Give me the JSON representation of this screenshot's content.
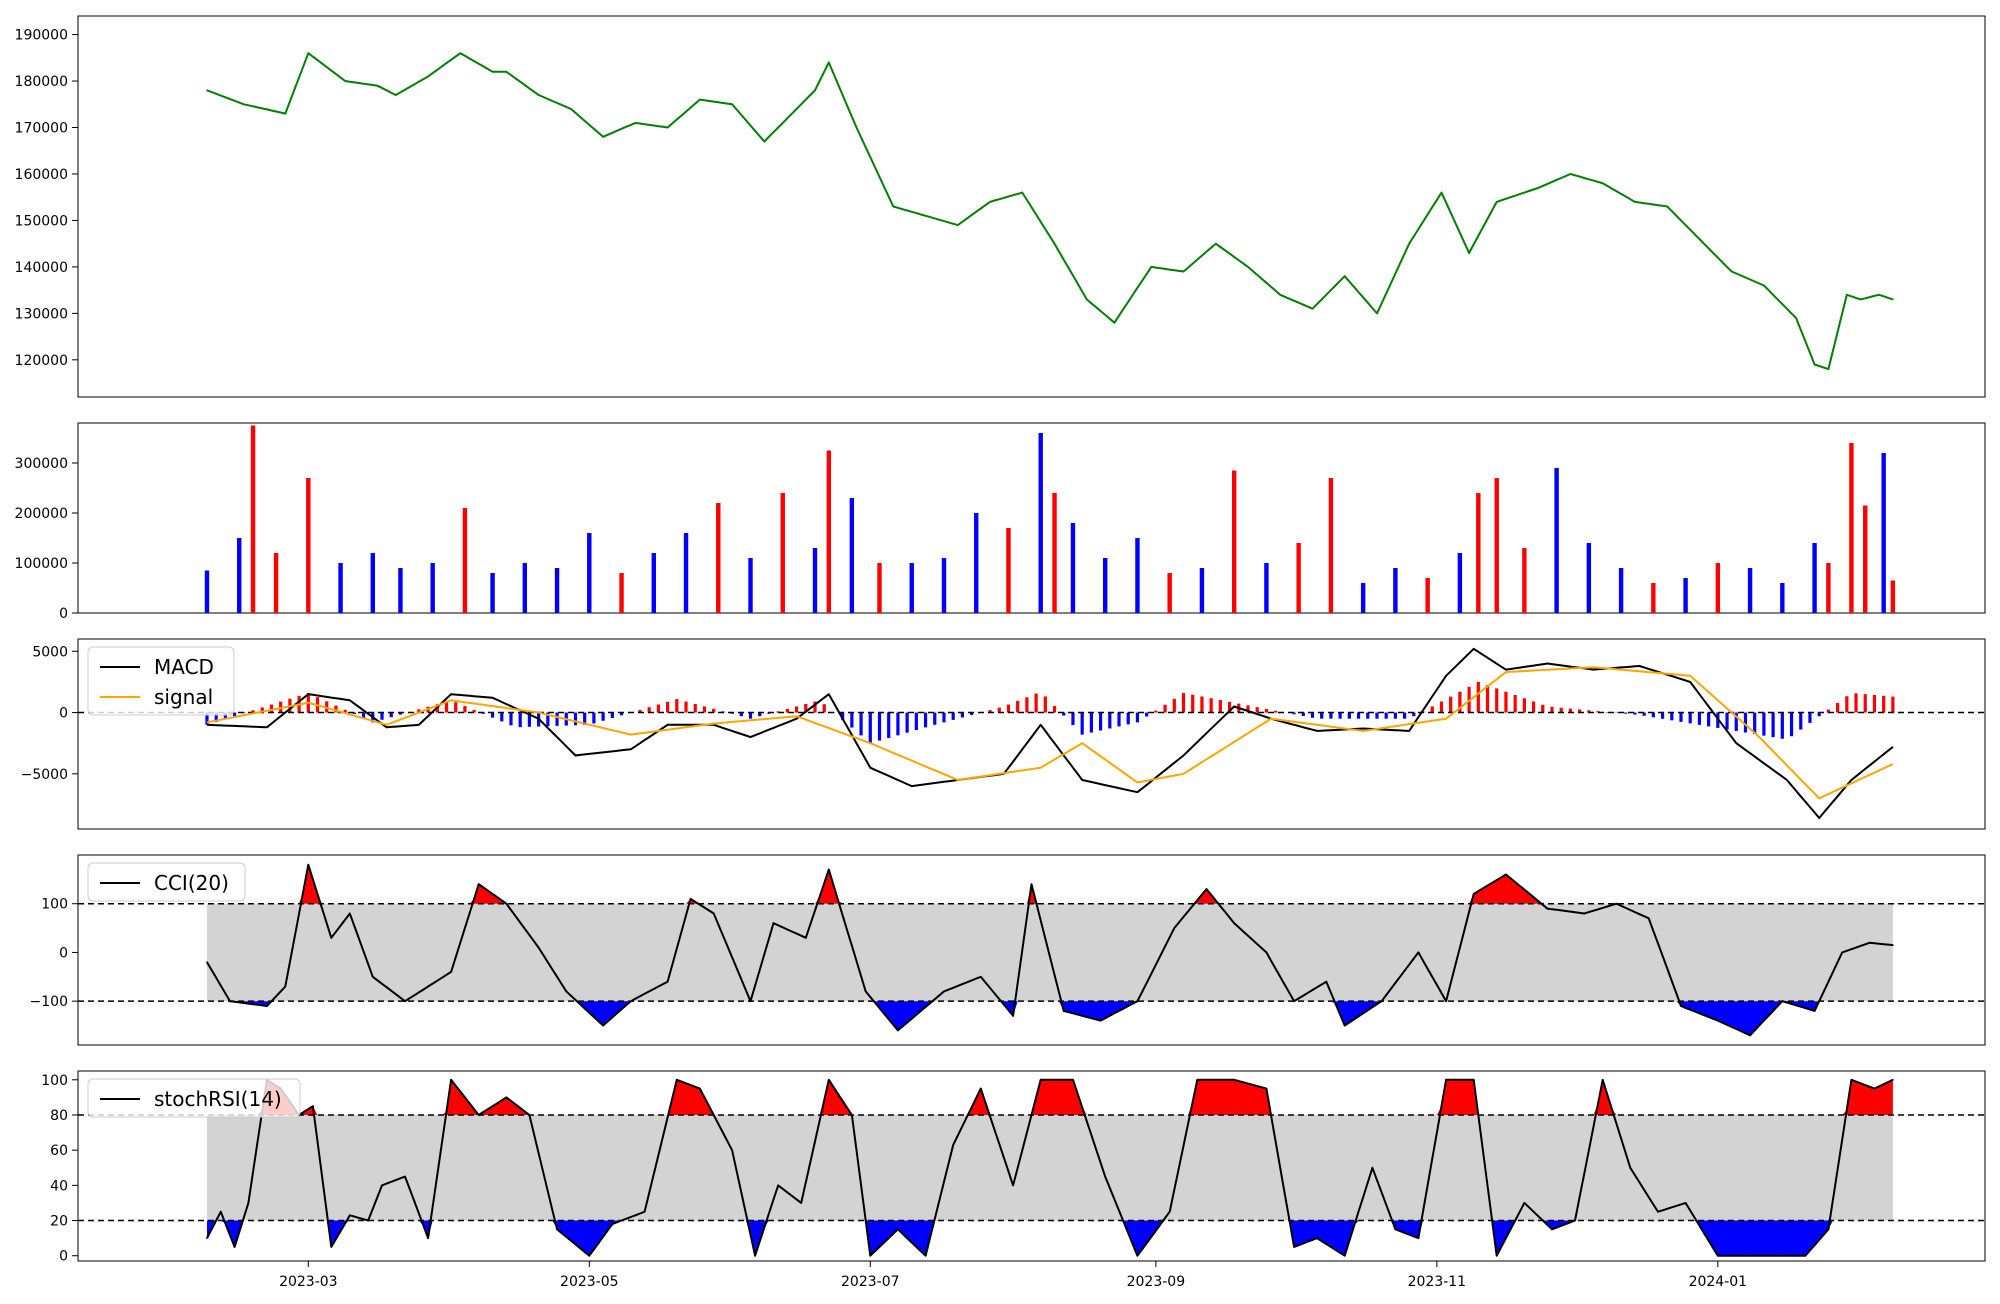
{
  "colors": {
    "price": "#008000",
    "up": "#ff0000",
    "down": "#0000ff",
    "neutral": "#000000",
    "macd": "#000000",
    "signal": "#ffa500",
    "band": "#d3d3d3",
    "overbought": "#ff0000",
    "oversold": "#0000ff"
  },
  "chart_data": [
    {
      "type": "line",
      "panel": "price",
      "ylim": [
        112000,
        194000
      ],
      "yticks": [
        120000,
        130000,
        140000,
        150000,
        160000,
        170000,
        180000,
        190000
      ],
      "x_dates": [
        "2023-02-07",
        "2023-02-15",
        "2023-02-24",
        "2023-03-01",
        "2023-03-09",
        "2023-03-16",
        "2023-03-20",
        "2023-03-27",
        "2023-04-03",
        "2023-04-10",
        "2023-04-13",
        "2023-04-20",
        "2023-04-27",
        "2023-05-04",
        "2023-05-11",
        "2023-05-18",
        "2023-05-25",
        "2023-06-01",
        "2023-06-08",
        "2023-06-14",
        "2023-06-19",
        "2023-06-22",
        "2023-06-28",
        "2023-07-06",
        "2023-07-13",
        "2023-07-20",
        "2023-07-27",
        "2023-08-03",
        "2023-08-10",
        "2023-08-17",
        "2023-08-23",
        "2023-08-31",
        "2023-09-07",
        "2023-09-14",
        "2023-09-21",
        "2023-09-28",
        "2023-10-05",
        "2023-10-12",
        "2023-10-19",
        "2023-10-26",
        "2023-11-02",
        "2023-11-08",
        "2023-11-14",
        "2023-11-17",
        "2023-11-23",
        "2023-11-30",
        "2023-12-07",
        "2023-12-14",
        "2023-12-21",
        "2023-12-28",
        "2024-01-04",
        "2024-01-11",
        "2024-01-18",
        "2024-01-22",
        "2024-01-25",
        "2024-01-29",
        "2024-02-01",
        "2024-02-05",
        "2024-02-08"
      ],
      "values": [
        178000,
        175000,
        173000,
        186000,
        180000,
        179000,
        177000,
        181000,
        186000,
        182000,
        182000,
        177000,
        174000,
        168000,
        171000,
        170000,
        176000,
        175000,
        167000,
        173000,
        178000,
        184000,
        170000,
        153000,
        151000,
        149000,
        154000,
        156000,
        145000,
        133000,
        128000,
        140000,
        139000,
        145000,
        140000,
        134000,
        131000,
        138000,
        130000,
        145000,
        156000,
        143000,
        154000,
        155000,
        157000,
        160000,
        158000,
        154000,
        153000,
        146000,
        139000,
        136000,
        129000,
        119000,
        118000,
        134000,
        133000,
        134000,
        133000
      ]
    },
    {
      "type": "bar",
      "panel": "volume",
      "ylim": [
        0,
        380000
      ],
      "yticks": [
        0,
        100000,
        200000,
        300000
      ],
      "x_dates": [
        "2023-02-07",
        "2023-02-14",
        "2023-02-17",
        "2023-02-22",
        "2023-03-01",
        "2023-03-08",
        "2023-03-15",
        "2023-03-21",
        "2023-03-28",
        "2023-04-04",
        "2023-04-10",
        "2023-04-17",
        "2023-04-24",
        "2023-05-01",
        "2023-05-08",
        "2023-05-15",
        "2023-05-22",
        "2023-05-29",
        "2023-06-05",
        "2023-06-12",
        "2023-06-19",
        "2023-06-22",
        "2023-06-27",
        "2023-07-03",
        "2023-07-10",
        "2023-07-17",
        "2023-07-24",
        "2023-07-31",
        "2023-08-07",
        "2023-08-10",
        "2023-08-14",
        "2023-08-21",
        "2023-08-28",
        "2023-09-04",
        "2023-09-11",
        "2023-09-18",
        "2023-09-25",
        "2023-10-02",
        "2023-10-09",
        "2023-10-16",
        "2023-10-23",
        "2023-10-30",
        "2023-11-06",
        "2023-11-10",
        "2023-11-14",
        "2023-11-20",
        "2023-11-27",
        "2023-12-04",
        "2023-12-11",
        "2023-12-18",
        "2023-12-25",
        "2024-01-01",
        "2024-01-08",
        "2024-01-15",
        "2024-01-22",
        "2024-01-25",
        "2024-01-30",
        "2024-02-02",
        "2024-02-06",
        "2024-02-08"
      ],
      "values": [
        85000,
        150000,
        375000,
        120000,
        270000,
        100000,
        120000,
        90000,
        100000,
        210000,
        80000,
        100000,
        90000,
        160000,
        80000,
        120000,
        160000,
        220000,
        110000,
        240000,
        130000,
        325000,
        230000,
        100000,
        100000,
        110000,
        200000,
        170000,
        360000,
        240000,
        180000,
        110000,
        150000,
        80000,
        90000,
        285000,
        100000,
        140000,
        270000,
        60000,
        90000,
        70000,
        120000,
        240000,
        270000,
        130000,
        290000,
        140000,
        90000,
        60000,
        70000,
        100000,
        90000,
        60000,
        140000,
        100000,
        340000,
        215000,
        320000,
        65000
      ],
      "direction": [
        "down",
        "down",
        "up",
        "up",
        "up",
        "down",
        "down",
        "down",
        "down",
        "up",
        "down",
        "down",
        "down",
        "down",
        "up",
        "down",
        "down",
        "up",
        "down",
        "up",
        "down",
        "up",
        "down",
        "up",
        "down",
        "down",
        "down",
        "up",
        "down",
        "up",
        "down",
        "down",
        "down",
        "up",
        "down",
        "up",
        "down",
        "up",
        "up",
        "down",
        "down",
        "up",
        "down",
        "up",
        "up",
        "up",
        "down",
        "down",
        "down",
        "up",
        "down",
        "up",
        "down",
        "down",
        "down",
        "up",
        "up",
        "up",
        "down",
        "up"
      ]
    },
    {
      "type": "line",
      "panel": "macd",
      "ylim": [
        -9500,
        6000
      ],
      "yticks": [
        -5000,
        0,
        5000
      ],
      "series": [
        {
          "name": "MACD",
          "x_dates": [
            "2023-02-07",
            "2023-02-20",
            "2023-03-01",
            "2023-03-10",
            "2023-03-18",
            "2023-03-25",
            "2023-04-01",
            "2023-04-10",
            "2023-04-20",
            "2023-04-28",
            "2023-05-10",
            "2023-05-18",
            "2023-05-28",
            "2023-06-05",
            "2023-06-15",
            "2023-06-22",
            "2023-07-01",
            "2023-07-10",
            "2023-07-20",
            "2023-07-30",
            "2023-08-07",
            "2023-08-16",
            "2023-08-28",
            "2023-09-07",
            "2023-09-18",
            "2023-09-26",
            "2023-10-06",
            "2023-10-16",
            "2023-10-26",
            "2023-11-03",
            "2023-11-09",
            "2023-11-16",
            "2023-11-25",
            "2023-12-05",
            "2023-12-15",
            "2023-12-26",
            "2024-01-05",
            "2024-01-16",
            "2024-01-23",
            "2024-01-30",
            "2024-02-08"
          ],
          "values": [
            -1000,
            -1200,
            1500,
            1000,
            -1200,
            -1000,
            1500,
            1200,
            -500,
            -3500,
            -3000,
            -1000,
            -1000,
            -2000,
            -500,
            1500,
            -4500,
            -6000,
            -5500,
            -5000,
            -1000,
            -5500,
            -6500,
            -3500,
            500,
            -500,
            -1500,
            -1300,
            -1500,
            3000,
            5200,
            3500,
            4000,
            3500,
            3800,
            2500,
            -2500,
            -5500,
            -8600,
            -5500,
            -2800
          ]
        },
        {
          "name": "signal",
          "x_dates": [
            "2023-02-07",
            "2023-03-01",
            "2023-03-18",
            "2023-04-01",
            "2023-04-20",
            "2023-05-10",
            "2023-05-28",
            "2023-06-15",
            "2023-07-01",
            "2023-07-20",
            "2023-08-07",
            "2023-08-16",
            "2023-08-28",
            "2023-09-07",
            "2023-09-26",
            "2023-10-16",
            "2023-11-03",
            "2023-11-16",
            "2023-12-05",
            "2023-12-26",
            "2024-01-10",
            "2024-01-23",
            "2024-02-08"
          ],
          "values": [
            -800,
            800,
            -1000,
            1000,
            0,
            -1800,
            -900,
            -300,
            -2500,
            -5500,
            -4500,
            -2500,
            -5700,
            -5000,
            -500,
            -1500,
            -500,
            3300,
            3700,
            3000,
            -2000,
            -7000,
            -4200
          ]
        }
      ],
      "histogram": {
        "x_dates": [
          "2023-02-07",
          "2023-03-01",
          "2023-03-15",
          "2023-04-01",
          "2023-04-15",
          "2023-05-01",
          "2023-05-20",
          "2023-06-05",
          "2023-06-20",
          "2023-07-01",
          "2023-07-15",
          "2023-07-30",
          "2023-08-07",
          "2023-08-16",
          "2023-08-28",
          "2023-09-07",
          "2023-09-18",
          "2023-10-06",
          "2023-10-26",
          "2023-11-10",
          "2023-11-25",
          "2023-12-15",
          "2024-01-05",
          "2024-01-16",
          "2024-01-30",
          "2024-02-08"
        ],
        "values": [
          -1000,
          1600,
          -800,
          1000,
          -1200,
          -1000,
          1100,
          -500,
          1000,
          -2500,
          -1000,
          500,
          1700,
          -1800,
          -800,
          1600,
          800,
          -500,
          -500,
          2500,
          500,
          -200,
          -1500,
          -2200,
          1600,
          1300
        ]
      },
      "legend": [
        "MACD",
        "signal"
      ],
      "legend_position": "upper-left"
    },
    {
      "type": "line",
      "panel": "cci",
      "ylim": [
        -190,
        200
      ],
      "yticks": [
        -100,
        0,
        100
      ],
      "thresholds": [
        100,
        -100
      ],
      "series": [
        {
          "name": "CCI(20)",
          "x_dates": [
            "2023-02-07",
            "2023-02-12",
            "2023-02-20",
            "2023-02-24",
            "2023-03-01",
            "2023-03-06",
            "2023-03-10",
            "2023-03-15",
            "2023-03-22",
            "2023-04-01",
            "2023-04-07",
            "2023-04-13",
            "2023-04-20",
            "2023-04-26",
            "2023-05-04",
            "2023-05-10",
            "2023-05-18",
            "2023-05-23",
            "2023-05-28",
            "2023-06-05",
            "2023-06-10",
            "2023-06-17",
            "2023-06-22",
            "2023-06-30",
            "2023-07-07",
            "2023-07-17",
            "2023-07-25",
            "2023-08-01",
            "2023-08-05",
            "2023-08-12",
            "2023-08-20",
            "2023-08-28",
            "2023-09-05",
            "2023-09-12",
            "2023-09-18",
            "2023-09-25",
            "2023-10-01",
            "2023-10-08",
            "2023-10-12",
            "2023-10-20",
            "2023-10-28",
            "2023-11-03",
            "2023-11-09",
            "2023-11-16",
            "2023-11-25",
            "2023-12-03",
            "2023-12-10",
            "2023-12-17",
            "2023-12-24",
            "2024-01-01",
            "2024-01-08",
            "2024-01-15",
            "2024-01-22",
            "2024-01-28",
            "2024-02-03",
            "2024-02-08"
          ],
          "values": [
            -20,
            -100,
            -110,
            -70,
            180,
            30,
            80,
            -50,
            -100,
            -40,
            140,
            100,
            10,
            -80,
            -150,
            -100,
            -60,
            110,
            80,
            -100,
            60,
            30,
            170,
            -80,
            -160,
            -80,
            -50,
            -130,
            140,
            -120,
            -140,
            -100,
            50,
            130,
            60,
            0,
            -100,
            -60,
            -150,
            -100,
            0,
            -100,
            120,
            160,
            90,
            80,
            100,
            70,
            -110,
            -140,
            -170,
            -100,
            -120,
            0,
            20,
            15
          ]
        }
      ],
      "legend": [
        "CCI(20)"
      ],
      "legend_position": "upper-left"
    },
    {
      "type": "line",
      "panel": "stochrsi",
      "ylim": [
        -3,
        105
      ],
      "yticks": [
        0,
        20,
        40,
        60,
        80,
        100
      ],
      "thresholds": [
        80,
        20
      ],
      "xticks": [
        "2023-03",
        "2023-05",
        "2023-07",
        "2023-09",
        "2023-11",
        "2024-01"
      ],
      "series": [
        {
          "name": "stochRSI(14)",
          "x_dates": [
            "2023-02-07",
            "2023-02-10",
            "2023-02-13",
            "2023-02-16",
            "2023-02-20",
            "2023-02-23",
            "2023-02-27",
            "2023-03-02",
            "2023-03-06",
            "2023-03-10",
            "2023-03-14",
            "2023-03-17",
            "2023-03-22",
            "2023-03-27",
            "2023-04-01",
            "2023-04-07",
            "2023-04-13",
            "2023-04-18",
            "2023-04-24",
            "2023-05-01",
            "2023-05-06",
            "2023-05-13",
            "2023-05-20",
            "2023-05-25",
            "2023-06-01",
            "2023-06-06",
            "2023-06-11",
            "2023-06-16",
            "2023-06-22",
            "2023-06-27",
            "2023-07-01",
            "2023-07-07",
            "2023-07-13",
            "2023-07-19",
            "2023-07-25",
            "2023-08-01",
            "2023-08-07",
            "2023-08-14",
            "2023-08-21",
            "2023-08-28",
            "2023-09-04",
            "2023-09-10",
            "2023-09-18",
            "2023-09-25",
            "2023-10-01",
            "2023-10-06",
            "2023-10-12",
            "2023-10-18",
            "2023-10-23",
            "2023-10-28",
            "2023-11-03",
            "2023-11-09",
            "2023-11-14",
            "2023-11-20",
            "2023-11-26",
            "2023-12-01",
            "2023-12-07",
            "2023-12-13",
            "2023-12-19",
            "2023-12-25",
            "2024-01-01",
            "2024-01-07",
            "2024-01-14",
            "2024-01-20",
            "2024-01-25",
            "2024-01-30",
            "2024-02-04",
            "2024-02-08"
          ],
          "values": [
            10,
            25,
            5,
            30,
            100,
            95,
            80,
            85,
            5,
            23,
            20,
            40,
            45,
            10,
            100,
            80,
            90,
            80,
            15,
            0,
            18,
            25,
            100,
            95,
            60,
            0,
            40,
            30,
            100,
            80,
            0,
            15,
            0,
            63,
            95,
            40,
            100,
            100,
            45,
            0,
            25,
            100,
            100,
            95,
            5,
            10,
            0,
            50,
            15,
            10,
            100,
            100,
            0,
            30,
            15,
            20,
            100,
            50,
            25,
            30,
            0,
            0,
            0,
            0,
            15,
            100,
            95,
            100
          ]
        }
      ],
      "legend": [
        "stochRSI(14)"
      ],
      "legend_position": "upper-left"
    }
  ]
}
